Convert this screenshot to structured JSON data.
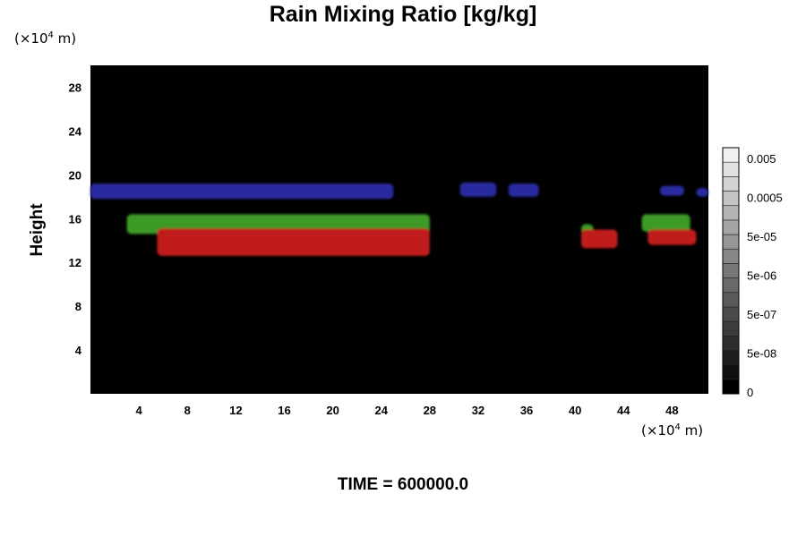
{
  "chart_data": {
    "type": "heatmap",
    "title": "Rain Mixing Ratio [kg/kg]",
    "ylabel": "Height",
    "x_unit": {
      "prefix": "(×10",
      "exp": "4",
      "suffix": " m)"
    },
    "y_unit": {
      "prefix": "(×10",
      "exp": "4",
      "suffix": " m)"
    },
    "xlim": [
      0,
      51
    ],
    "ylim": [
      0,
      30
    ],
    "x_ticks": [
      4,
      8,
      12,
      16,
      20,
      24,
      28,
      32,
      36,
      40,
      44,
      48
    ],
    "y_ticks": [
      4,
      8,
      12,
      16,
      20,
      24,
      28
    ],
    "background_color": "#000000",
    "colorbar": {
      "labels": [
        "0.005",
        "0.0005",
        "5e-05",
        "5e-06",
        "5e-07",
        "5e-08",
        "0"
      ],
      "levels": 17,
      "color_min": "#000000",
      "color_max": "#f0f0f0"
    },
    "regions": [
      {
        "color": "#2a2aa0",
        "x_start": 0.0,
        "x_end": 25.0,
        "y_low": 17.8,
        "y_high": 19.2
      },
      {
        "color": "#2a2aa0",
        "x_start": 30.5,
        "x_end": 33.5,
        "y_low": 18.0,
        "y_high": 19.3
      },
      {
        "color": "#2a2aa0",
        "x_start": 34.5,
        "x_end": 37.0,
        "y_low": 18.0,
        "y_high": 19.2
      },
      {
        "color": "#2a2aa0",
        "x_start": 47.0,
        "x_end": 49.0,
        "y_low": 18.1,
        "y_high": 19.0
      },
      {
        "color": "#2a2aa0",
        "x_start": 50.0,
        "x_end": 51.0,
        "y_low": 18.0,
        "y_high": 18.8
      },
      {
        "color": "#3c9a28",
        "x_start": 3.0,
        "x_end": 28.0,
        "y_low": 14.6,
        "y_high": 16.4
      },
      {
        "color": "#3c9a28",
        "x_start": 40.5,
        "x_end": 41.5,
        "y_low": 14.6,
        "y_high": 15.5
      },
      {
        "color": "#3c9a28",
        "x_start": 45.5,
        "x_end": 49.5,
        "y_low": 14.8,
        "y_high": 16.4
      },
      {
        "color": "#c01a1a",
        "x_start": 5.5,
        "x_end": 28.0,
        "y_low": 12.6,
        "y_high": 15.1
      },
      {
        "color": "#c01a1a",
        "x_start": 40.5,
        "x_end": 43.5,
        "y_low": 13.3,
        "y_high": 15.0
      },
      {
        "color": "#c01a1a",
        "x_start": 46.0,
        "x_end": 50.0,
        "y_low": 13.6,
        "y_high": 15.0
      }
    ],
    "time_label": "TIME = 600000.0"
  }
}
